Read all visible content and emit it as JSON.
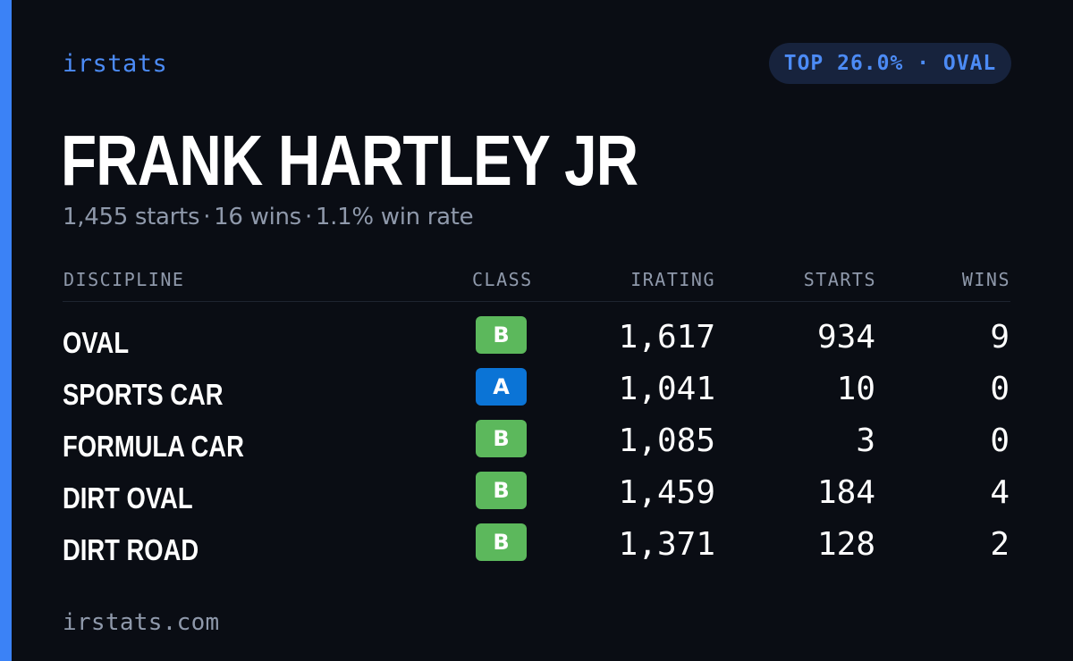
{
  "brand": "irstats",
  "badge": "TOP 26.0% · OVAL",
  "driver": {
    "name": "FRANK HARTLEY JR",
    "starts": "1,455 starts",
    "wins": "16 wins",
    "win_rate": "1.1% win rate",
    "separator": "·"
  },
  "table": {
    "headers": {
      "discipline": "DISCIPLINE",
      "class": "CLASS",
      "irating": "IRATING",
      "starts": "STARTS",
      "wins": "WINS"
    },
    "rows": [
      {
        "discipline": "OVAL",
        "class": "B",
        "class_color": "#5cb85c",
        "irating": "1,617",
        "starts": "934",
        "wins": "9"
      },
      {
        "discipline": "SPORTS CAR",
        "class": "A",
        "class_color": "#0b74d6",
        "irating": "1,041",
        "starts": "10",
        "wins": "0"
      },
      {
        "discipline": "FORMULA CAR",
        "class": "B",
        "class_color": "#5cb85c",
        "irating": "1,085",
        "starts": "3",
        "wins": "0"
      },
      {
        "discipline": "DIRT OVAL",
        "class": "B",
        "class_color": "#5cb85c",
        "irating": "1,459",
        "starts": "184",
        "wins": "4"
      },
      {
        "discipline": "DIRT ROAD",
        "class": "B",
        "class_color": "#5cb85c",
        "irating": "1,371",
        "starts": "128",
        "wins": "2"
      }
    ]
  },
  "footer": "irstats.com",
  "colors": {
    "background": "#0a0d14",
    "accent": "#3b82f6",
    "class_b": "#5cb85c",
    "class_a": "#0b74d6"
  }
}
